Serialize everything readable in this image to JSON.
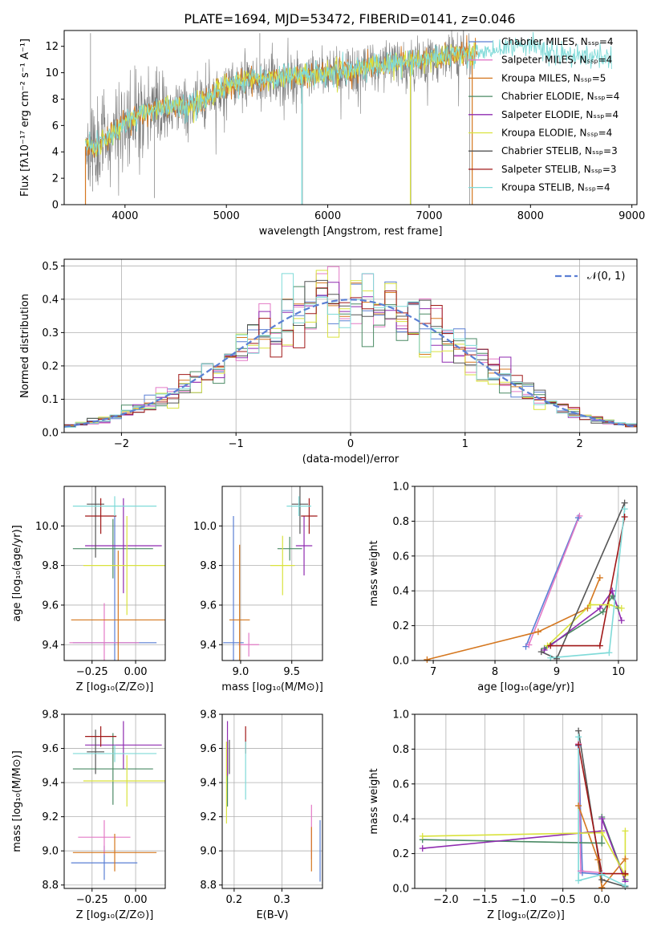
{
  "figure": {
    "title": "PLATE=1694, MJD=53472, FIBERID=0141, z=0.046"
  },
  "colors": {
    "Chabrier MILES": "#5a7fd4",
    "Salpeter MILES": "#e37ac6",
    "Kroupa MILES": "#d5771f",
    "Chabrier ELODIE": "#4a8a64",
    "Salpeter ELODIE": "#8f2bb0",
    "Kroupa ELODIE": "#d9e23d",
    "Chabrier STELIB": "#555555",
    "Salpeter STELIB": "#a01818",
    "Kroupa STELIB": "#7fdad8",
    "normal": "#5b7fd4"
  },
  "chart_data": [
    {
      "id": "spectrum",
      "type": "line",
      "xlabel": "wavelength [Angstrom, rest frame]",
      "ylabel": "Flux [fλ10⁻¹⁷ erg cm⁻² s⁻¹ A⁻¹]",
      "xlim": [
        3400,
        9050
      ],
      "ylim": [
        0,
        13.2
      ],
      "xticks": [
        "4000",
        "5000",
        "6000",
        "7000",
        "8000",
        "9000"
      ],
      "yticks": [
        "0",
        "2",
        "4",
        "6",
        "8",
        "10",
        "12"
      ],
      "continuum": {
        "x": [
          3600,
          3700,
          3800,
          3900,
          4000,
          4200,
          4400,
          4600,
          4800,
          5000,
          5200,
          5400,
          5600,
          5800,
          6000,
          6200,
          6400,
          6600,
          6800,
          7000,
          7200,
          7400,
          7600,
          7800,
          8000,
          8200,
          8400,
          8600,
          8800
        ],
        "y": [
          4.5,
          4.3,
          5.0,
          5.5,
          6.2,
          7.0,
          7.5,
          7.3,
          8.0,
          9.0,
          9.4,
          9.6,
          9.7,
          9.8,
          10.0,
          10.2,
          10.4,
          10.6,
          10.8,
          11.0,
          11.3,
          11.4,
          11.6,
          11.8,
          11.9,
          11.8,
          11.4,
          11.2,
          11.3
        ]
      },
      "legend": [
        "Chabrier MILES, Nₛₛₚ=4",
        "Salpeter MILES, Nₛₛₚ=4",
        "Kroupa MILES, Nₛₛₚ=5",
        "Chabrier ELODIE, Nₛₛₚ=4",
        "Salpeter ELODIE, Nₛₛₚ=4",
        "Kroupa ELODIE, Nₛₛₚ=4",
        "Chabrier STELIB, Nₛₛₚ=3",
        "Salpeter STELIB, Nₛₛₚ=3",
        "Kroupa STELIB, Nₛₛₚ=4"
      ],
      "legend_models": [
        "Chabrier MILES",
        "Salpeter MILES",
        "Kroupa MILES",
        "Chabrier ELODIE",
        "Salpeter ELODIE",
        "Kroupa ELODIE",
        "Chabrier STELIB",
        "Salpeter STELIB",
        "Kroupa STELIB"
      ],
      "legend_placement": "right"
    },
    {
      "id": "residual-histogram",
      "type": "bar",
      "xlabel": "(data-model)/error",
      "ylabel": "Normed distribution",
      "xlim": [
        -2.5,
        2.5
      ],
      "ylim": [
        0,
        0.52
      ],
      "xticks": [
        "−2",
        "−1",
        "0",
        "1",
        "2"
      ],
      "yticks": [
        "0.0",
        "0.1",
        "0.2",
        "0.3",
        "0.4",
        "0.5"
      ],
      "bin_width": 0.1,
      "legend": [
        "𝒩(0, 1)"
      ],
      "legend_placement": "top-right",
      "grid": true
    },
    {
      "id": "age-vs-Z",
      "type": "scatter",
      "xlabel": "Z [log₁₀(Z/Z⊙)]",
      "ylabel": "age  [log₁₀(age/yr)]",
      "xlim": [
        -0.41,
        0.17
      ],
      "ylim": [
        9.32,
        10.2
      ],
      "xticks": [
        "−0.25",
        "0.00"
      ],
      "yticks": [
        "9.4",
        "9.6",
        "9.8",
        "10.0"
      ],
      "points": [
        {
          "model": "Chabrier MILES",
          "x": -0.12,
          "y": 9.41,
          "xerr": 0.24,
          "yerr": 0.64
        },
        {
          "model": "Salpeter MILES",
          "x": -0.18,
          "y": 9.41,
          "xerr": 0.2,
          "yerr": 0.2
        },
        {
          "model": "Kroupa MILES",
          "x": -0.1,
          "y": 9.525,
          "xerr": 0.27,
          "yerr": 0.35
        },
        {
          "model": "Chabrier ELODIE",
          "x": -0.13,
          "y": 9.885,
          "xerr": 0.23,
          "yerr": 0.15
        },
        {
          "model": "Salpeter ELODIE",
          "x": -0.07,
          "y": 9.9,
          "xerr": 0.22,
          "yerr": 0.24
        },
        {
          "model": "Kroupa ELODIE",
          "x": -0.05,
          "y": 9.8,
          "xerr": 0.25,
          "yerr": 0.25
        },
        {
          "model": "Chabrier STELIB",
          "x": -0.23,
          "y": 10.11,
          "xerr": 0.05,
          "yerr": 0.27
        },
        {
          "model": "Salpeter STELIB",
          "x": -0.2,
          "y": 10.05,
          "xerr": 0.09,
          "yerr": 0.09
        },
        {
          "model": "Kroupa STELIB",
          "x": -0.12,
          "y": 10.1,
          "xerr": 0.24,
          "yerr": 0.05
        }
      ],
      "grid": true
    },
    {
      "id": "age-vs-mass",
      "type": "scatter",
      "xlabel": "mass [log₁₀(M/M⊙)]",
      "ylabel": "",
      "xlim": [
        8.82,
        9.8
      ],
      "ylim": [
        9.32,
        10.2
      ],
      "xticks": [
        "9.0",
        "9.5"
      ],
      "yticks": [
        "9.4",
        "9.6",
        "9.8",
        "10.0"
      ],
      "points": [
        {
          "model": "Chabrier MILES",
          "x": 8.93,
          "y": 9.41,
          "xerr": 0.1,
          "yerr": 0.64
        },
        {
          "model": "Salpeter MILES",
          "x": 9.08,
          "y": 9.4,
          "xerr": 0.1,
          "yerr": 0.06
        },
        {
          "model": "Kroupa MILES",
          "x": 8.99,
          "y": 9.525,
          "xerr": 0.1,
          "yerr": 0.38
        },
        {
          "model": "Chabrier ELODIE",
          "x": 9.48,
          "y": 9.885,
          "xerr": 0.12,
          "yerr": 0.06
        },
        {
          "model": "Salpeter ELODIE",
          "x": 9.62,
          "y": 9.9,
          "xerr": 0.08,
          "yerr": 0.15
        },
        {
          "model": "Kroupa ELODIE",
          "x": 9.41,
          "y": 9.8,
          "xerr": 0.12,
          "yerr": 0.15
        },
        {
          "model": "Chabrier STELIB",
          "x": 9.58,
          "y": 10.11,
          "xerr": 0.08,
          "yerr": 0.15
        },
        {
          "model": "Salpeter STELIB",
          "x": 9.67,
          "y": 10.05,
          "xerr": 0.08,
          "yerr": 0.09
        },
        {
          "model": "Kroupa STELIB",
          "x": 9.57,
          "y": 10.1,
          "xerr": 0.12,
          "yerr": 0.05
        }
      ],
      "grid": true
    },
    {
      "id": "mass-weight-vs-age",
      "type": "line",
      "xlabel": "age  [log₁₀(age/yr)]",
      "ylabel": "mass weight",
      "xlim": [
        6.7,
        10.3
      ],
      "ylim": [
        0,
        1.0
      ],
      "xticks": [
        "7",
        "8",
        "9",
        "10"
      ],
      "yticks": [
        "0.0",
        "0.2",
        "0.4",
        "0.6",
        "0.8",
        "1.0"
      ],
      "series": [
        {
          "model": "Chabrier MILES",
          "x": [
            8.5,
            9.35
          ],
          "y": [
            0.08,
            0.82
          ]
        },
        {
          "model": "Salpeter MILES",
          "x": [
            8.55,
            9.37
          ],
          "y": [
            0.09,
            0.83
          ]
        },
        {
          "model": "Kroupa MILES",
          "x": [
            6.9,
            8.7,
            9.5,
            9.7
          ],
          "y": [
            0.005,
            0.165,
            0.3,
            0.475
          ]
        },
        {
          "model": "Chabrier ELODIE",
          "x": [
            8.8,
            9.75,
            9.9,
            10.0
          ],
          "y": [
            0.07,
            0.28,
            0.37,
            0.3
          ]
        },
        {
          "model": "Salpeter ELODIE",
          "x": [
            8.8,
            9.7,
            9.9,
            10.05
          ],
          "y": [
            0.06,
            0.3,
            0.4,
            0.23
          ]
        },
        {
          "model": "Kroupa ELODIE",
          "x": [
            8.85,
            9.55,
            9.85,
            10.05
          ],
          "y": [
            0.085,
            0.32,
            0.32,
            0.3
          ]
        },
        {
          "model": "Chabrier STELIB",
          "x": [
            8.75,
            9.0,
            10.1
          ],
          "y": [
            0.05,
            0.01,
            0.905
          ]
        },
        {
          "model": "Salpeter STELIB",
          "x": [
            8.9,
            9.7,
            10.1
          ],
          "y": [
            0.085,
            0.085,
            0.825
          ]
        },
        {
          "model": "Kroupa STELIB",
          "x": [
            8.9,
            9.85,
            10.1
          ],
          "y": [
            0.015,
            0.045,
            0.87
          ]
        }
      ],
      "grid": true
    },
    {
      "id": "mass-vs-Z",
      "type": "scatter",
      "xlabel": "Z [log₁₀(Z/Z⊙)]",
      "ylabel": "mass [log₁₀(M/M⊙)]",
      "xlim": [
        -0.41,
        0.17
      ],
      "ylim": [
        8.78,
        9.8
      ],
      "xticks": [
        "−0.25",
        "0.00"
      ],
      "yticks": [
        "8.8",
        "9.0",
        "9.2",
        "9.4",
        "9.6",
        "9.8"
      ],
      "points": [
        {
          "model": "Chabrier MILES",
          "x": -0.18,
          "y": 8.93,
          "xerr": 0.19,
          "yerr": 0.1
        },
        {
          "model": "Salpeter MILES",
          "x": -0.18,
          "y": 9.08,
          "xerr": 0.15,
          "yerr": 0.1
        },
        {
          "model": "Kroupa MILES",
          "x": -0.12,
          "y": 8.99,
          "xerr": 0.24,
          "yerr": 0.11
        },
        {
          "model": "Chabrier ELODIE",
          "x": -0.13,
          "y": 9.48,
          "xerr": 0.23,
          "yerr": 0.21
        },
        {
          "model": "Salpeter ELODIE",
          "x": -0.07,
          "y": 9.62,
          "xerr": 0.22,
          "yerr": 0.14
        },
        {
          "model": "Kroupa ELODIE",
          "x": -0.05,
          "y": 9.41,
          "xerr": 0.25,
          "yerr": 0.15
        },
        {
          "model": "Chabrier STELIB",
          "x": -0.23,
          "y": 9.58,
          "xerr": 0.05,
          "yerr": 0.13
        },
        {
          "model": "Salpeter STELIB",
          "x": -0.2,
          "y": 9.67,
          "xerr": 0.09,
          "yerr": 0.06
        },
        {
          "model": "Kroupa STELIB",
          "x": -0.12,
          "y": 9.57,
          "xerr": 0.24,
          "yerr": 0.05
        }
      ],
      "grid": true
    },
    {
      "id": "mass-vs-ebv",
      "type": "scatter",
      "xlabel": "E(B-V)",
      "ylabel": "",
      "xlim": [
        0.175,
        0.385
      ],
      "ylim": [
        8.78,
        9.8
      ],
      "xticks": [
        "0.2",
        "0.3"
      ],
      "yticks": [
        "8.8",
        "9.0",
        "9.2",
        "9.4",
        "9.6",
        "9.8"
      ],
      "points": [
        {
          "model": "Chabrier MILES",
          "x": 0.38,
          "y": 9.0,
          "xerr": 0,
          "yerr": 0.18
        },
        {
          "model": "Salpeter MILES",
          "x": 0.362,
          "y": 9.11,
          "xerr": 0,
          "yerr": 0.16
        },
        {
          "model": "Kroupa MILES",
          "x": 0.362,
          "y": 9.01,
          "xerr": 0,
          "yerr": 0.13
        },
        {
          "model": "Chabrier ELODIE",
          "x": 0.186,
          "y": 9.45,
          "xerr": 0,
          "yerr": 0.19
        },
        {
          "model": "Salpeter ELODIE",
          "x": 0.186,
          "y": 9.6,
          "xerr": 0,
          "yerr": 0.16
        },
        {
          "model": "Kroupa ELODIE",
          "x": 0.184,
          "y": 9.4,
          "xerr": 0,
          "yerr": 0.24
        },
        {
          "model": "Chabrier STELIB",
          "x": 0.19,
          "y": 9.55,
          "xerr": 0,
          "yerr": 0.1
        },
        {
          "model": "Salpeter STELIB",
          "x": 0.224,
          "y": 9.65,
          "xerr": 0,
          "yerr": 0.08
        },
        {
          "model": "Kroupa STELIB",
          "x": 0.224,
          "y": 9.47,
          "xerr": 0,
          "yerr": 0.17
        }
      ],
      "grid": true
    },
    {
      "id": "mass-weight-vs-Z",
      "type": "line",
      "xlabel": "Z [log₁₀(Z/Z⊙)]",
      "ylabel": "mass weight",
      "xlim": [
        -2.4,
        0.45
      ],
      "ylim": [
        0,
        1.0
      ],
      "xticks": [
        "−2.0",
        "−1.5",
        "−1.0",
        "−0.5",
        "0.0"
      ],
      "yticks": [
        "0.0",
        "0.2",
        "0.4",
        "0.6",
        "0.8",
        "1.0"
      ],
      "series": [
        {
          "model": "Chabrier MILES",
          "x": [
            -0.3,
            -0.25,
            0.0
          ],
          "y": [
            0.82,
            0.09,
            0.08
          ]
        },
        {
          "model": "Salpeter MILES",
          "x": [
            -0.3,
            -0.27,
            0.0
          ],
          "y": [
            0.83,
            0.1,
            0.09
          ]
        },
        {
          "model": "Kroupa MILES",
          "x": [
            -0.3,
            -0.05,
            0.0,
            0.3,
            0.3
          ],
          "y": [
            0.475,
            0.165,
            0.005,
            0.17,
            0.08
          ]
        },
        {
          "model": "Chabrier ELODIE",
          "x": [
            -2.3,
            0.0,
            0.0,
            0.3
          ],
          "y": [
            0.28,
            0.26,
            0.41,
            0.05
          ]
        },
        {
          "model": "Salpeter ELODIE",
          "x": [
            -2.3,
            0.0,
            0.0,
            0.3
          ],
          "y": [
            0.23,
            0.33,
            0.4,
            0.04
          ]
        },
        {
          "model": "Kroupa ELODIE",
          "x": [
            -2.3,
            0.0,
            0.3,
            0.3
          ],
          "y": [
            0.3,
            0.32,
            0.075,
            0.33
          ]
        },
        {
          "model": "Chabrier STELIB",
          "x": [
            -0.3,
            0.0,
            0.3
          ],
          "y": [
            0.905,
            0.05,
            0.01
          ]
        },
        {
          "model": "Salpeter STELIB",
          "x": [
            -0.3,
            0.0,
            0.3
          ],
          "y": [
            0.825,
            0.085,
            0.085
          ]
        },
        {
          "model": "Kroupa STELIB",
          "x": [
            -0.3,
            -0.3,
            0.0,
            0.3
          ],
          "y": [
            0.87,
            0.045,
            0.08,
            0.015
          ]
        }
      ],
      "grid": true
    }
  ]
}
